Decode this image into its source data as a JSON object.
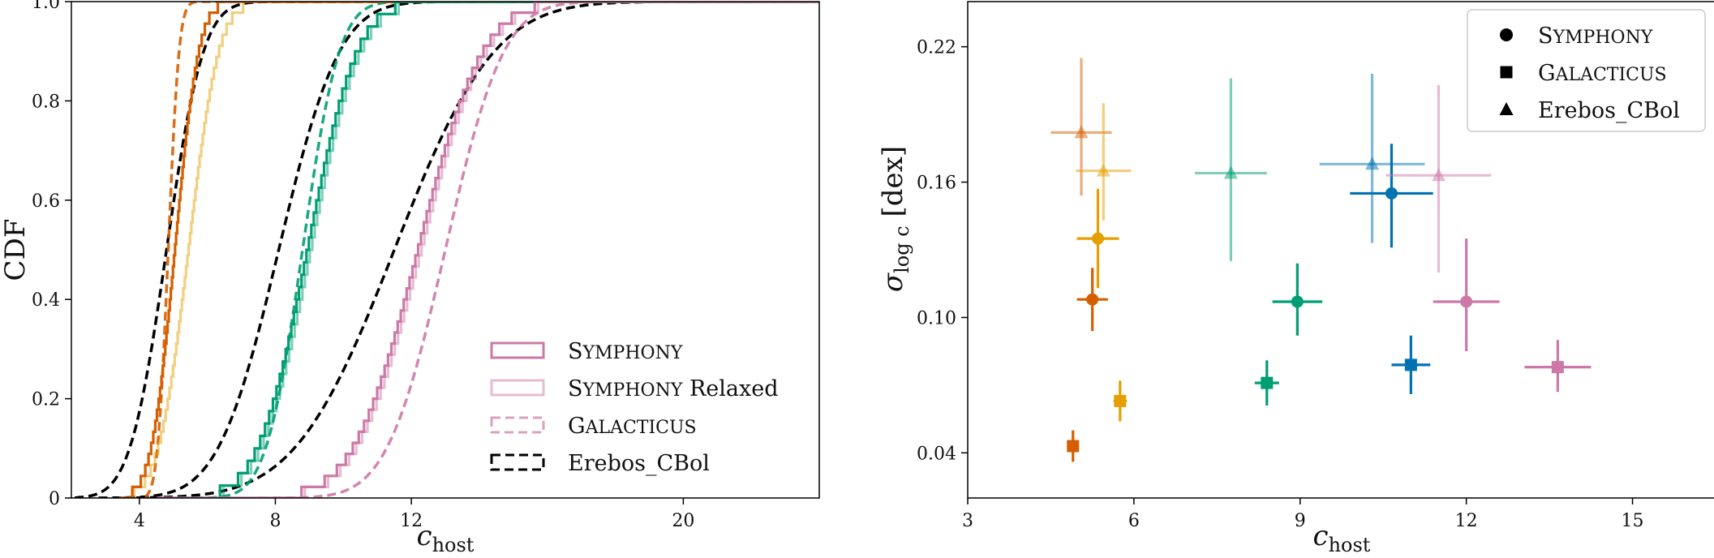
{
  "chart_data": [
    {
      "type": "line",
      "panel": "left",
      "ylabel": "CDF",
      "xlabel_main": "c",
      "xlabel_sub": "host",
      "xlim": [
        2,
        24
      ],
      "ylim": [
        0,
        1
      ],
      "xticks": [
        4,
        8,
        12,
        20
      ],
      "yticks": [
        0,
        0.2,
        0.4,
        0.6,
        0.8,
        1.0
      ],
      "xtick_labels": [
        "4",
        "8",
        "12",
        "20"
      ],
      "ytick_labels": [
        "0",
        "0.2",
        "0.4",
        "0.6",
        "0.8",
        "1.0"
      ],
      "grid": false,
      "legend_position": "lower-right",
      "legend": [
        {
          "label": "Symphony",
          "style": "solid",
          "alpha": 1.0
        },
        {
          "label": "Symphony Relaxed",
          "style": "solid",
          "alpha": 0.5
        },
        {
          "label": "Galacticus",
          "style": "dashed",
          "alpha": 0.7
        },
        {
          "label": "Erebos_CBol",
          "style": "dashed",
          "color": "#000000"
        }
      ],
      "series": [
        {
          "group": "orange",
          "kind": "symphony",
          "color": "#d55e00",
          "median": 5.05,
          "spread": 0.55,
          "n": 45,
          "x_start": 3.4
        },
        {
          "group": "orange",
          "kind": "relaxed",
          "color": "#e69f00",
          "median": 5.45,
          "spread": 0.7,
          "n": 45,
          "x_start": 3.4
        },
        {
          "group": "orange",
          "kind": "galacticus",
          "color": "#d55e00",
          "median": 4.85,
          "spread": 0.25,
          "x_start": 4.2,
          "x_end": 9.0
        },
        {
          "group": "orange",
          "kind": "erebos",
          "color": "#000000",
          "median": 4.8,
          "spread": 0.85,
          "x_start": 2.1,
          "x_end": 18.0
        },
        {
          "group": "green",
          "kind": "symphony",
          "color": "#009e73",
          "median": 8.95,
          "spread": 1.15,
          "n": 40,
          "x_start": 4.5
        },
        {
          "group": "green",
          "kind": "relaxed",
          "color": "#009e73",
          "median": 9.05,
          "spread": 1.15,
          "n": 40,
          "x_start": 4.5
        },
        {
          "group": "green",
          "kind": "galacticus",
          "color": "#009e73",
          "median": 8.8,
          "spread": 0.85,
          "x_start": 5.2,
          "x_end": 16.0
        },
        {
          "group": "green",
          "kind": "erebos",
          "color": "#000000",
          "median": 8.1,
          "spread": 1.4,
          "x_start": 2.8,
          "x_end": 16.5
        },
        {
          "group": "pink",
          "kind": "symphony",
          "color": "#cc79a7",
          "median": 12.2,
          "spread": 1.5,
          "n": 45,
          "x_start": 4.5
        },
        {
          "group": "pink",
          "kind": "relaxed",
          "color": "#cc79a7",
          "median": 12.3,
          "spread": 1.5,
          "n": 45,
          "x_start": 4.5
        },
        {
          "group": "pink",
          "kind": "galacticus",
          "color": "#cc79a7",
          "median": 13.0,
          "spread": 1.35,
          "x_start": 7.5,
          "x_end": 23.0
        },
        {
          "group": "pink",
          "kind": "erebos",
          "color": "#000000",
          "median": 11.5,
          "spread": 2.3,
          "x_start": 3.5,
          "x_end": 23.5
        }
      ]
    },
    {
      "type": "scatter",
      "panel": "right",
      "ylabel_main": "σ",
      "ylabel_sub": "log c",
      "ylabel_unit": "[dex]",
      "xlabel_main": "c",
      "xlabel_sub": "host",
      "xlim": [
        3,
        16.5
      ],
      "ylim": [
        0.02,
        0.24
      ],
      "xticks": [
        3,
        6,
        9,
        12,
        15
      ],
      "yticks": [
        0.04,
        0.1,
        0.16,
        0.22
      ],
      "xtick_labels": [
        "3",
        "6",
        "9",
        "12",
        "15"
      ],
      "ytick_labels": [
        "0.04",
        "0.10",
        "0.16",
        "0.22"
      ],
      "grid": false,
      "legend_position": "top-right",
      "legend": [
        {
          "label": "Symphony",
          "marker": "circle"
        },
        {
          "label": "Galacticus",
          "marker": "square"
        },
        {
          "label": "Erebos_CBol",
          "marker": "triangle"
        }
      ],
      "points": [
        {
          "marker": "circle",
          "color": "#d55e00",
          "x": 5.25,
          "y": 0.108,
          "xerr": 0.28,
          "yerr": [
            0.014,
            0.014
          ],
          "alpha": 1.0
        },
        {
          "marker": "circle",
          "color": "#e69f00",
          "x": 5.35,
          "y": 0.135,
          "xerr": 0.38,
          "yerr": [
            0.022,
            0.022
          ],
          "alpha": 1.0
        },
        {
          "marker": "circle",
          "color": "#009e73",
          "x": 8.95,
          "y": 0.107,
          "xerr": 0.45,
          "yerr": [
            0.015,
            0.017
          ],
          "alpha": 1.0
        },
        {
          "marker": "circle",
          "color": "#0072b2",
          "x": 10.65,
          "y": 0.155,
          "xerr": 0.75,
          "yerr": [
            0.024,
            0.022
          ],
          "alpha": 1.0
        },
        {
          "marker": "circle",
          "color": "#cc79a7",
          "x": 12.0,
          "y": 0.107,
          "xerr": 0.6,
          "yerr": [
            0.022,
            0.028
          ],
          "alpha": 1.0
        },
        {
          "marker": "square",
          "color": "#d55e00",
          "x": 4.9,
          "y": 0.043,
          "xerr": 0.0,
          "yerr": [
            0.007,
            0.007
          ],
          "alpha": 1.0
        },
        {
          "marker": "square",
          "color": "#e69f00",
          "x": 5.75,
          "y": 0.063,
          "xerr": 0.12,
          "yerr": [
            0.009,
            0.009
          ],
          "alpha": 1.0
        },
        {
          "marker": "square",
          "color": "#009e73",
          "x": 8.4,
          "y": 0.071,
          "xerr": 0.22,
          "yerr": [
            0.01,
            0.01
          ],
          "alpha": 1.0
        },
        {
          "marker": "square",
          "color": "#0072b2",
          "x": 11.0,
          "y": 0.079,
          "xerr": 0.35,
          "yerr": [
            0.013,
            0.013
          ],
          "alpha": 1.0
        },
        {
          "marker": "square",
          "color": "#cc79a7",
          "x": 13.65,
          "y": 0.078,
          "xerr": 0.6,
          "yerr": [
            0.011,
            0.012
          ],
          "alpha": 1.0
        },
        {
          "marker": "triangle",
          "color": "#d55e00",
          "x": 5.05,
          "y": 0.182,
          "xerr": 0.55,
          "yerr": [
            0.028,
            0.033
          ],
          "alpha": 0.5
        },
        {
          "marker": "triangle",
          "color": "#e69f00",
          "x": 5.45,
          "y": 0.165,
          "xerr": 0.5,
          "yerr": [
            0.022,
            0.03
          ],
          "alpha": 0.5
        },
        {
          "marker": "triangle",
          "color": "#009e73",
          "x": 7.75,
          "y": 0.164,
          "xerr": 0.65,
          "yerr": [
            0.039,
            0.042
          ],
          "alpha": 0.5
        },
        {
          "marker": "triangle",
          "color": "#0072b2",
          "x": 10.3,
          "y": 0.168,
          "xerr": 0.95,
          "yerr": [
            0.035,
            0.04
          ],
          "alpha": 0.5
        },
        {
          "marker": "triangle",
          "color": "#cc79a7",
          "x": 11.5,
          "y": 0.163,
          "xerr": 0.95,
          "yerr": [
            0.043,
            0.04
          ],
          "alpha": 0.5
        }
      ]
    }
  ]
}
